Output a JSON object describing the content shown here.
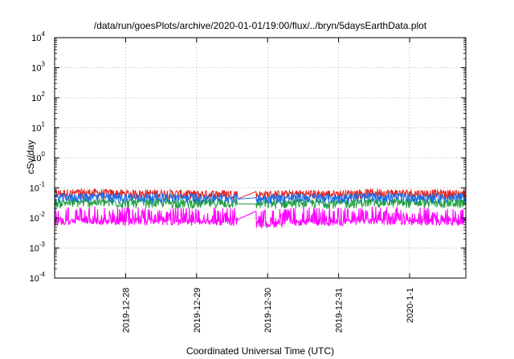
{
  "chart_data": {
    "type": "line",
    "title": "/data/run/goesPlots/archive/2020-01-01/19:00/flux/../bryn/5daysEarthData.plot",
    "xlabel": "Coordinated Universal Time (UTC)",
    "ylabel": "cSv/day",
    "yscale": "log",
    "ylim": [
      0.0001,
      10000
    ],
    "xlim": [
      "2019-12-27T00:00",
      "2020-01-01T19:00"
    ],
    "y_ticks": [
      {
        "base": "10",
        "exp": "-4"
      },
      {
        "base": "10",
        "exp": "-3"
      },
      {
        "base": "10",
        "exp": "-2"
      },
      {
        "base": "10",
        "exp": "-1"
      },
      {
        "base": "10",
        "exp": "0"
      },
      {
        "base": "10",
        "exp": "1"
      },
      {
        "base": "10",
        "exp": "2"
      },
      {
        "base": "10",
        "exp": "3"
      },
      {
        "base": "10",
        "exp": "4"
      }
    ],
    "x_ticks": [
      "2019-12-28",
      "2019-12-29",
      "2019-12-30",
      "2019-12-31",
      "2020-1-1"
    ],
    "grid": true,
    "data_gap": [
      "2019-12-29T14:00",
      "2019-12-29T20:00"
    ],
    "series": [
      {
        "color": "#e8201a",
        "x": [
          "2019-12-27T00:00",
          "2019-12-27T12:00",
          "2019-12-28T00:00",
          "2019-12-28T12:00",
          "2019-12-29T00:00",
          "2019-12-29T14:00",
          "2019-12-29T20:00",
          "2019-12-30T12:00",
          "2019-12-31T00:00",
          "2019-12-31T12:00",
          "2020-01-01T00:00",
          "2020-01-01T12:00",
          "2020-01-01T19:00"
        ],
        "values": [
          0.06,
          0.065,
          0.06,
          0.062,
          0.058,
          0.06,
          0.055,
          0.06,
          0.058,
          0.065,
          0.062,
          0.06,
          0.06
        ]
      },
      {
        "color": "#1f9e3f",
        "x": [
          "2019-12-27T00:00",
          "2019-12-27T12:00",
          "2019-12-28T00:00",
          "2019-12-28T12:00",
          "2019-12-29T00:00",
          "2019-12-29T14:00",
          "2019-12-29T20:00",
          "2019-12-30T12:00",
          "2019-12-31T00:00",
          "2019-12-31T12:00",
          "2020-01-01T00:00",
          "2020-01-01T12:00",
          "2020-01-01T19:00"
        ],
        "values": [
          0.03,
          0.032,
          0.03,
          0.031,
          0.029,
          0.03,
          0.028,
          0.03,
          0.029,
          0.032,
          0.031,
          0.03,
          0.03
        ]
      },
      {
        "color": "#1a6ee8",
        "x": [
          "2019-12-27T00:00",
          "2019-12-27T12:00",
          "2019-12-28T00:00",
          "2019-12-28T12:00",
          "2019-12-29T00:00",
          "2019-12-29T14:00",
          "2019-12-29T20:00",
          "2019-12-30T12:00",
          "2019-12-31T00:00",
          "2019-12-31T12:00",
          "2020-01-01T00:00",
          "2020-01-01T12:00",
          "2020-01-01T19:00"
        ],
        "values": [
          0.045,
          0.048,
          0.045,
          0.046,
          0.044,
          0.045,
          0.042,
          0.045,
          0.044,
          0.048,
          0.046,
          0.045,
          0.045
        ]
      },
      {
        "color": "#ff00ff",
        "x": [
          "2019-12-27T00:00",
          "2019-12-27T12:00",
          "2019-12-28T00:00",
          "2019-12-28T12:00",
          "2019-12-29T00:00",
          "2019-12-29T14:00",
          "2019-12-29T20:00",
          "2019-12-30T12:00",
          "2019-12-31T00:00",
          "2019-12-31T12:00",
          "2020-01-01T00:00",
          "2020-01-01T12:00",
          "2020-01-01T19:00"
        ],
        "values": [
          0.007,
          0.0075,
          0.007,
          0.0072,
          0.0068,
          0.007,
          0.0055,
          0.007,
          0.0068,
          0.0075,
          0.0072,
          0.007,
          0.007
        ]
      }
    ]
  }
}
